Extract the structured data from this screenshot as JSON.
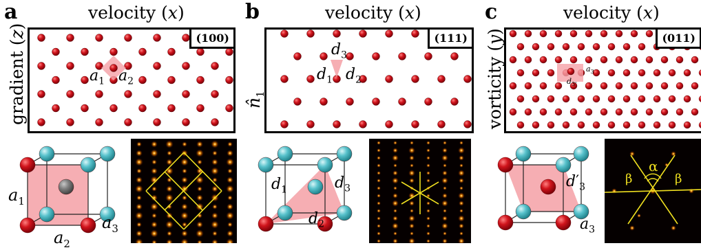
{
  "panels": [
    {
      "letter": "a",
      "title_text": "velocity (",
      "title_var": "x",
      "title_close": ")",
      "ylabel_text": "gradient (",
      "ylabel_var": "z",
      "ylabel_close": ")",
      "miller": "(100)",
      "unit_cell_labels": {
        "l1": "a",
        "s1": "1",
        "l2": "a",
        "s2": "2"
      },
      "cube_labels": {
        "l1": "a",
        "s1": "1",
        "l2": "a",
        "s2": "2",
        "l3": "a",
        "s3": "3"
      }
    },
    {
      "letter": "b",
      "title_text": "velocity (",
      "title_var": "x",
      "title_close": ")",
      "ylabel_text": "n̂",
      "ylabel_sub": "1",
      "miller": "(111)",
      "unit_cell_labels": {
        "l1": "d",
        "s1": "1",
        "l2": "d",
        "s2": "2",
        "l3": "d",
        "s3": "3"
      },
      "cube_labels": {
        "l1": "d",
        "s1": "1",
        "l2": "d",
        "s2": "2",
        "l3": "d",
        "s3": "3"
      }
    },
    {
      "letter": "c",
      "title_text": "velocity (",
      "title_var": "x",
      "title_close": ")",
      "ylabel_text": "vorticity (",
      "ylabel_var": "y",
      "ylabel_close": ")",
      "miller": "(011)",
      "unit_cell_labels": {
        "l1": "a",
        "s1": "3",
        "l2": "d",
        "s2": "3'"
      },
      "cube_labels": {
        "l1": "d",
        "s1": "3",
        "prime": "′",
        "l2": "a",
        "s2": "3"
      },
      "fft_labels": {
        "alpha": "α",
        "beta_left": "β",
        "beta_right": "β"
      }
    }
  ],
  "colors": {
    "red_sphere": "#d0141c",
    "teal_sphere": "#58c2cc",
    "pink_fill": "#f5a0a6",
    "fft_line": "#f0e020",
    "fft_dot": "#ff8a00"
  }
}
